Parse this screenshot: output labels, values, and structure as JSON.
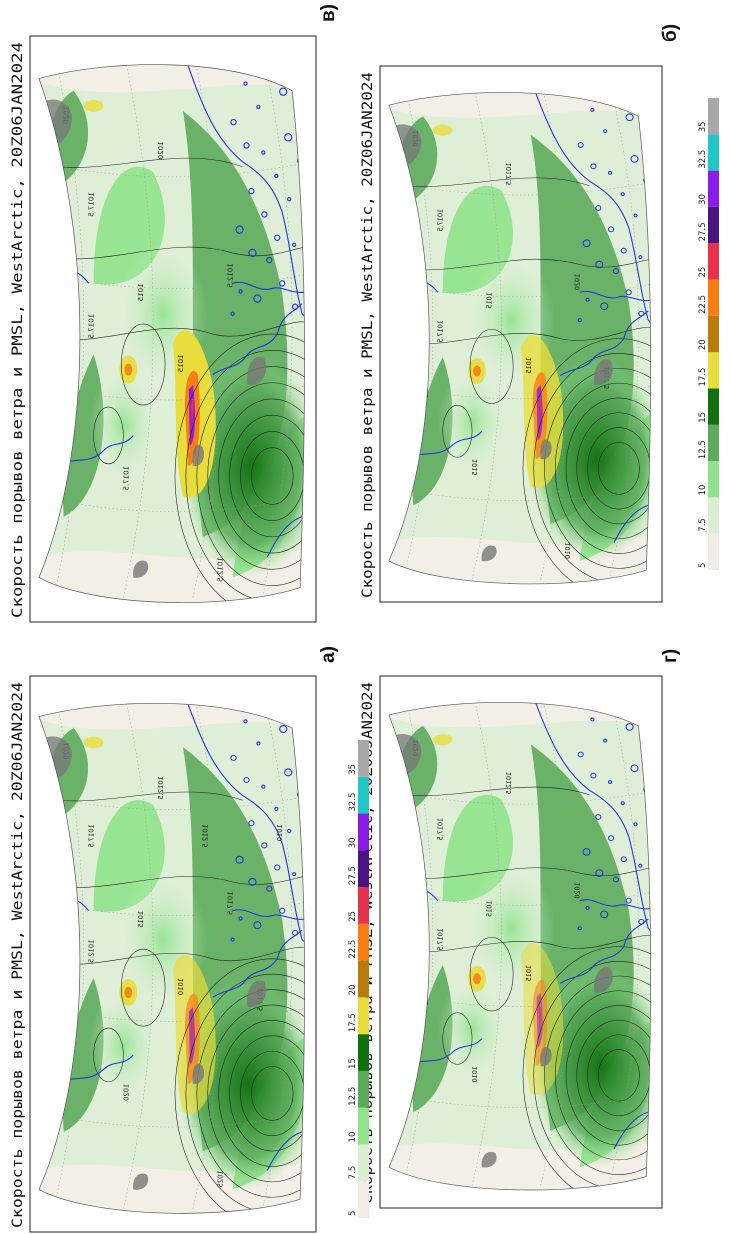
{
  "panels": [
    {
      "id": "a",
      "label": "а)",
      "title": "Скорость порывов ветра и PMSL, WestArctic, 20Z06JAN2024",
      "isobar_labels": [
        "1020",
        "1017.5",
        "1015",
        "1012.5",
        "1010",
        "1017.5",
        "1012.5",
        "1015",
        "1020",
        "1025",
        "1017.5",
        "1010",
        "1012.5"
      ]
    },
    {
      "id": "b",
      "label": "б)",
      "title": "Скорость порывов ветра и PMSL, WestArctic, 20Z06JAN2024",
      "isobar_labels": [
        "1020",
        "1017.5",
        "1015",
        "1017.5",
        "1015",
        "1020",
        "1017.5",
        "1012.5",
        "1015",
        "1010",
        "1017.5"
      ]
    },
    {
      "id": "v",
      "label": "в)",
      "title": "Скорость порывов ветра и PMSL, WestArctic, 20Z06JAN2024",
      "isobar_labels": [
        "1020",
        "1017.5",
        "1015",
        "1017.5",
        "1015",
        "1012.5",
        "1020",
        "1010",
        "1017.5",
        "1012.5"
      ]
    },
    {
      "id": "g",
      "label": "г)",
      "title": "Скорость порывов ветра и PMSL, WestArctic, 20Z06JAN2024",
      "isobar_labels": [
        "1020",
        "1017.5",
        "1015",
        "1017.5",
        "1015",
        "1020",
        "1012.5",
        "1017.5",
        "1010"
      ]
    }
  ],
  "colorbar": {
    "ticks": [
      "5",
      "7.5",
      "10",
      "12.5",
      "15",
      "17.5",
      "20",
      "22.5",
      "25",
      "27.5",
      "30",
      "32.5",
      "35"
    ],
    "colors": [
      "#f2ece4",
      "#d9efd3",
      "#8fe38b",
      "#5cab5c",
      "#0f720f",
      "#e8dd3a",
      "#b87c0c",
      "#fa7d14",
      "#e8324c",
      "#4a1485",
      "#8a1be8",
      "#20c7c7",
      "#a8a8a8"
    ]
  },
  "map_colors": {
    "land_outline": "#2233dd",
    "isobar": "#222222",
    "terrain": "#777777"
  }
}
